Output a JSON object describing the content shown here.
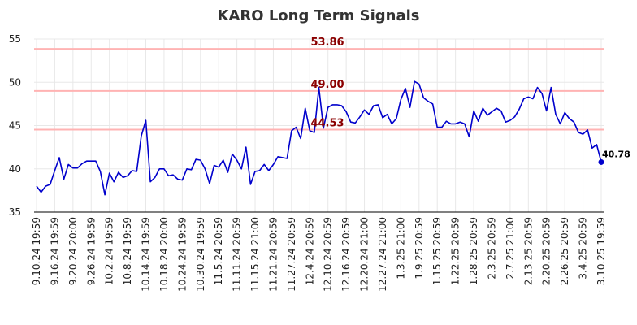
{
  "chart_data": {
    "type": "line",
    "title": "KARO Long Term Signals",
    "xlabel": "",
    "ylabel": "",
    "ylim": [
      35,
      55
    ],
    "yticks": [
      35,
      40,
      45,
      50,
      55
    ],
    "grid": true,
    "line_color": "#0000cc",
    "ref_color": "#ffb3b3",
    "ref_label_color": "#8b0000",
    "reference_lines": [
      {
        "value": 53.86,
        "label": "53.86"
      },
      {
        "value": 49.0,
        "label": "49.00"
      },
      {
        "value": 44.53,
        "label": "44.53"
      }
    ],
    "last_point": {
      "value": 40.78,
      "label": "40.78"
    },
    "x_tick_labels": [
      "9.10.24 19:59",
      "9.16.24 19:59",
      "9.20.24 20:00",
      "9.26.24 19:59",
      "10.2.24 19:59",
      "10.8.24 19:59",
      "10.14.24 19:59",
      "10.18.24 20:00",
      "10.24.24 19:59",
      "10.30.24 19:59",
      "11.5.24 20:59",
      "11.11.24 20:59",
      "11.15.24 21:00",
      "11.21.24 20:59",
      "11.27.24 20:59",
      "12.4.24 20:59",
      "12.10.24 20:59",
      "12.16.24 20:59",
      "12.20.24 21:00",
      "12.27.24 21:00",
      "1.3.25 21:00",
      "1.9.25 20:59",
      "1.15.25 20:59",
      "1.22.25 20:59",
      "1.28.25 20:59",
      "2.3.25 20:59",
      "2.7.25 21:00",
      "2.13.25 20:59",
      "2.20.25 20:59",
      "2.26.25 20:59",
      "3.4.25 20:59",
      "3.10.25 19:59"
    ],
    "series": [
      {
        "values": [
          38.0,
          37.3,
          38.0,
          38.2,
          39.8,
          41.3,
          38.8,
          40.5,
          40.1,
          40.1,
          40.6,
          40.9,
          40.9,
          40.9,
          39.7,
          37.0,
          39.5,
          38.5,
          39.6,
          39.0,
          39.2,
          39.8,
          39.7,
          43.8,
          45.6,
          38.5,
          39.0,
          40.0,
          40.0,
          39.2,
          39.3,
          38.8,
          38.7,
          40.0,
          39.9,
          41.1,
          41.0,
          40.0,
          38.3,
          40.4,
          40.2,
          41.0,
          39.6,
          41.7,
          41.0,
          40.0,
          42.5,
          38.2,
          39.7,
          39.8,
          40.5,
          39.8,
          40.5,
          41.4,
          41.3,
          41.2,
          44.4,
          44.8,
          43.5,
          47.0,
          44.4,
          44.2,
          49.4,
          44.7,
          47.1,
          47.4,
          47.4,
          47.3,
          46.6,
          45.4,
          45.3,
          46.0,
          46.8,
          46.3,
          47.3,
          47.4,
          45.9,
          46.3,
          45.2,
          45.8,
          48.0,
          49.3,
          47.1,
          50.1,
          49.8,
          48.2,
          47.8,
          47.5,
          44.8,
          44.8,
          45.5,
          45.2,
          45.2,
          45.4,
          45.2,
          43.7,
          46.7,
          45.5,
          47.0,
          46.2,
          46.6,
          47.0,
          46.7,
          45.4,
          45.6,
          46.0,
          46.9,
          48.1,
          48.3,
          48.1,
          49.4,
          48.7,
          46.7,
          49.4,
          46.3,
          45.2,
          46.5,
          45.8,
          45.4,
          44.2,
          44.0,
          44.5,
          42.4,
          42.8,
          40.78
        ]
      }
    ]
  }
}
